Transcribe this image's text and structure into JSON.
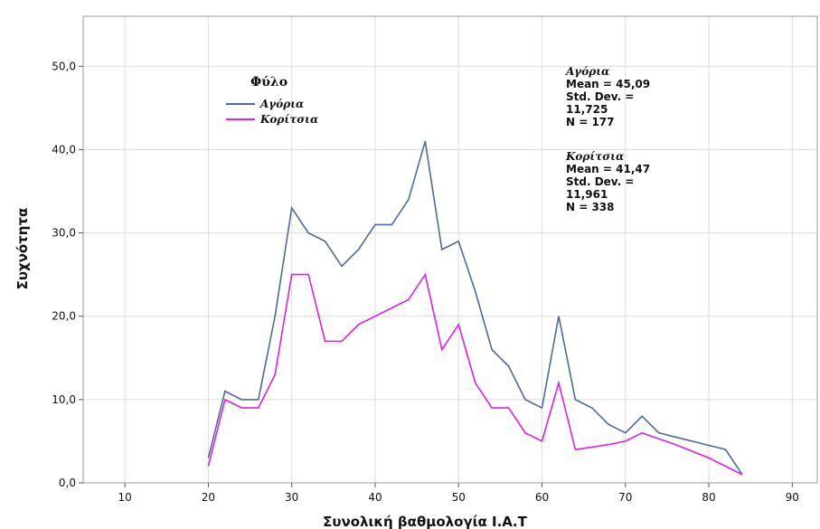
{
  "chart_data": {
    "type": "line",
    "xlabel": "Συνολική βαθμολογία Ι.Α.Τ",
    "ylabel": "Συχνότητα",
    "xlim": [
      5,
      93
    ],
    "ylim": [
      0,
      56
    ],
    "x_ticks": [
      10,
      20,
      30,
      40,
      50,
      60,
      70,
      80,
      90
    ],
    "y_ticks": [
      0,
      10,
      20,
      30,
      40,
      50
    ],
    "y_tick_labels": [
      "0,0",
      "10,0",
      "20,0",
      "30,0",
      "40,0",
      "50,0"
    ],
    "grid": true,
    "legend": {
      "title": "Φύλο",
      "position": "top-left",
      "entries": [
        "Αγόρια",
        "Κορίτσια"
      ]
    },
    "series": [
      {
        "name": "Αγόρια",
        "color": "#4e6a9c",
        "x": [
          20,
          22,
          24,
          26,
          28,
          30,
          32,
          34,
          36,
          38,
          40,
          42,
          44,
          46,
          48,
          50,
          52,
          54,
          56,
          58,
          60,
          62,
          64,
          66,
          68,
          70,
          72,
          74,
          76,
          78,
          80,
          82,
          84
        ],
        "values": [
          3,
          11,
          10,
          10,
          20,
          33,
          30,
          29,
          26,
          28,
          31,
          31,
          34,
          41,
          28,
          29,
          23,
          16,
          14,
          10,
          9,
          20,
          10,
          9,
          7,
          6,
          8,
          6,
          5.5,
          5,
          4.5,
          4,
          1
        ]
      },
      {
        "name": "Κορίτσια",
        "color": "#e020e0",
        "x": [
          20,
          22,
          24,
          26,
          28,
          30,
          32,
          34,
          36,
          38,
          40,
          42,
          44,
          46,
          48,
          50,
          52,
          54,
          56,
          58,
          60,
          62,
          64,
          66,
          68,
          70,
          72,
          74,
          76,
          78,
          80,
          82,
          84
        ],
        "values": [
          2,
          10,
          9,
          9,
          13,
          25,
          25,
          17,
          17,
          19,
          20,
          21,
          22,
          25,
          16,
          19,
          12,
          9,
          9,
          6,
          5,
          12,
          4,
          4.3,
          4.6,
          5,
          6,
          5.3,
          4.6,
          3.8,
          3,
          2,
          1
        ]
      }
    ],
    "annotations": [
      {
        "group": "Αγόρια",
        "lines": [
          "Mean = 45,09",
          "Std. Dev. =",
          "11,725",
          "N = 177"
        ]
      },
      {
        "group": "Κορίτσια",
        "lines": [
          "Mean = 41,47",
          "Std. Dev. =",
          "11,961",
          "N = 338"
        ]
      }
    ]
  }
}
